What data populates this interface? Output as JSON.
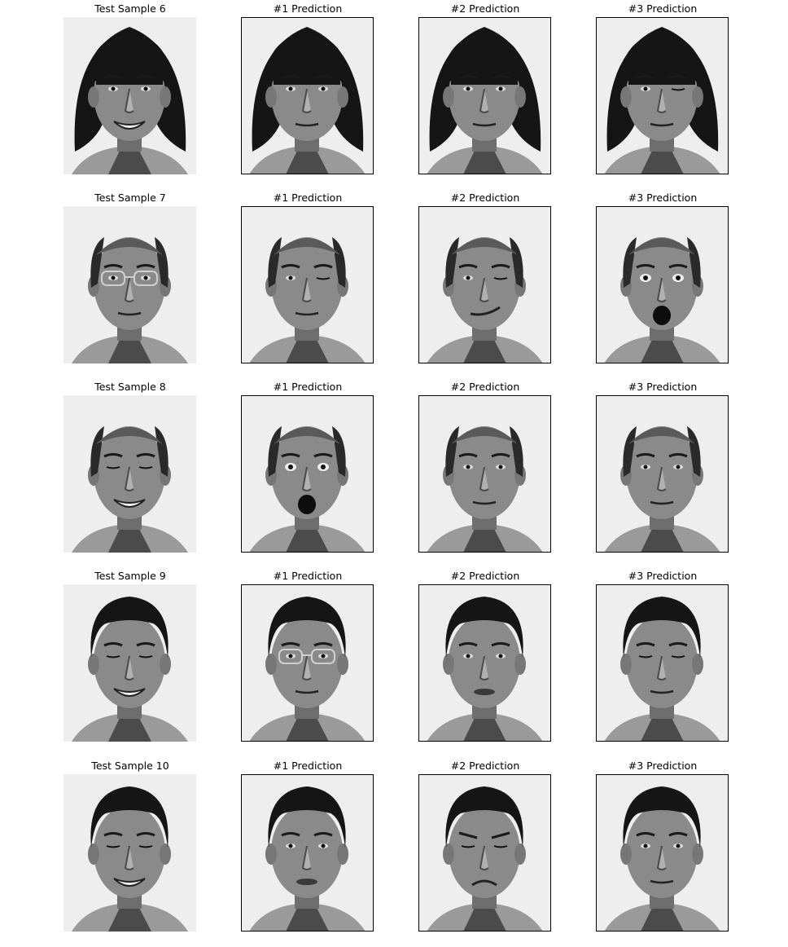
{
  "figure": {
    "rows": [
      {
        "test_title": "Test Sample 6",
        "prediction_titles": [
          "#1 Prediction",
          "#2 Prediction",
          "#3 Prediction"
        ],
        "faces": [
          {
            "hair": "bob",
            "expression": "smile",
            "glasses": false,
            "eyes": "open"
          },
          {
            "hair": "bob",
            "expression": "neutral",
            "glasses": false,
            "eyes": "open"
          },
          {
            "hair": "bob",
            "expression": "neutral",
            "glasses": false,
            "eyes": "open"
          },
          {
            "hair": "bob",
            "expression": "neutral",
            "glasses": false,
            "eyes": "wink"
          }
        ]
      },
      {
        "test_title": "Test Sample 7",
        "prediction_titles": [
          "#1 Prediction",
          "#2 Prediction",
          "#3 Prediction"
        ],
        "faces": [
          {
            "hair": "balding",
            "expression": "neutral",
            "glasses": true,
            "eyes": "open"
          },
          {
            "hair": "balding",
            "expression": "neutral",
            "glasses": false,
            "eyes": "wink"
          },
          {
            "hair": "balding",
            "expression": "smirk",
            "glasses": false,
            "eyes": "wink"
          },
          {
            "hair": "balding",
            "expression": "surprised",
            "glasses": false,
            "eyes": "wide"
          }
        ]
      },
      {
        "test_title": "Test Sample 8",
        "prediction_titles": [
          "#1 Prediction",
          "#2 Prediction",
          "#3 Prediction"
        ],
        "faces": [
          {
            "hair": "balding",
            "expression": "smile",
            "glasses": false,
            "eyes": "squint"
          },
          {
            "hair": "balding",
            "expression": "surprised",
            "glasses": false,
            "eyes": "wide"
          },
          {
            "hair": "balding",
            "expression": "neutral",
            "glasses": false,
            "eyes": "open"
          },
          {
            "hair": "balding",
            "expression": "neutral",
            "glasses": false,
            "eyes": "open"
          }
        ]
      },
      {
        "test_title": "Test Sample 9",
        "prediction_titles": [
          "#1 Prediction",
          "#2 Prediction",
          "#3 Prediction"
        ],
        "faces": [
          {
            "hair": "short",
            "expression": "smile",
            "glasses": false,
            "eyes": "squint"
          },
          {
            "hair": "short",
            "expression": "neutral",
            "glasses": true,
            "eyes": "open"
          },
          {
            "hair": "short",
            "expression": "pout",
            "glasses": false,
            "eyes": "open"
          },
          {
            "hair": "short",
            "expression": "neutral",
            "glasses": false,
            "eyes": "closed"
          }
        ]
      },
      {
        "test_title": "Test Sample 10",
        "prediction_titles": [
          "#1 Prediction",
          "#2 Prediction",
          "#3 Prediction"
        ],
        "faces": [
          {
            "hair": "short-up",
            "expression": "smile",
            "glasses": false,
            "eyes": "squint"
          },
          {
            "hair": "short-up",
            "expression": "pout",
            "glasses": false,
            "eyes": "open"
          },
          {
            "hair": "short-up",
            "expression": "frown",
            "glasses": false,
            "eyes": "squint"
          },
          {
            "hair": "short-up",
            "expression": "neutral",
            "glasses": false,
            "eyes": "open"
          }
        ]
      }
    ]
  }
}
